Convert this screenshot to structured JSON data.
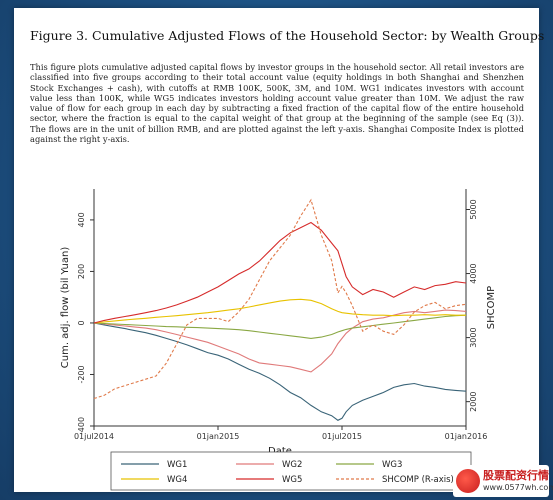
{
  "figure": {
    "title": "Figure 3. Cumulative Adjusted Flows of the Household Sector: by Wealth Groups",
    "caption": "This figure plots cumulative adjusted capital flows by investor groups in the household sector. All retail investors are classified into five groups according to their total account value (equity holdings in both Shanghai and Shenzhen Stock Exchanges + cash), with cutoffs at RMB 100K, 500K, 3M, and 10M. WG1 indicates investors with account value less than 100K, while WG5 indicates investors holding account value greater than 10M. We adjust the raw value of flow for each group in each day by subtracting a fixed fraction of the capital flow of the entire household sector, where the fraction is equal to the capital weight of that group at the beginning of the sample (see Eq (3)). The flows are in the unit of billion RMB, and are plotted against the left y-axis. Shanghai Composite Index is plotted against the right y-axis."
  },
  "watermark": {
    "line1": "股票配资行情",
    "line2": "www.0577wh.com"
  },
  "chart_data": {
    "type": "line",
    "xlabel": "Date",
    "ylabel": "Cum. adj. flow (bil Yuan)",
    "y2label": "SHCOMP",
    "x_ticks": [
      "01jul2014",
      "01jan2015",
      "01jul2015",
      "01jan2016"
    ],
    "x_tick_months": [
      0,
      6,
      12,
      18
    ],
    "ylim": [
      -400,
      520
    ],
    "y_ticks": [
      -400,
      -200,
      0,
      200,
      400
    ],
    "y2lim": [
      1620,
      5320
    ],
    "y2_ticks": [
      2000,
      3000,
      4000,
      5000
    ],
    "grid": false,
    "legend_position": "bottom",
    "x": [
      0,
      0.5,
      1,
      1.5,
      2,
      2.5,
      3,
      3.5,
      4,
      4.5,
      5,
      5.5,
      6,
      6.5,
      7,
      7.5,
      8,
      8.5,
      9,
      9.5,
      10,
      10.5,
      11,
      11.5,
      11.8,
      12,
      12.2,
      12.5,
      13,
      13.5,
      14,
      14.5,
      15,
      15.5,
      16,
      16.5,
      17,
      17.5,
      18
    ],
    "series": [
      {
        "name": "WG1",
        "color": "#3a6478",
        "dash": "solid",
        "axis": "left",
        "values": [
          0,
          -8,
          -15,
          -22,
          -30,
          -38,
          -48,
          -60,
          -72,
          -85,
          -100,
          -115,
          -125,
          -140,
          -160,
          -180,
          -195,
          -215,
          -240,
          -270,
          -290,
          -320,
          -345,
          -360,
          -378,
          -370,
          -345,
          -320,
          -300,
          -285,
          -270,
          -250,
          -240,
          -235,
          -245,
          -250,
          -258,
          -262,
          -265
        ]
      },
      {
        "name": "WG2",
        "color": "#e07a7a",
        "dash": "solid",
        "axis": "left",
        "values": [
          0,
          -4,
          -8,
          -12,
          -16,
          -20,
          -26,
          -35,
          -45,
          -55,
          -65,
          -75,
          -90,
          -105,
          -120,
          -140,
          -155,
          -160,
          -165,
          -170,
          -180,
          -190,
          -160,
          -120,
          -80,
          -60,
          -40,
          -20,
          5,
          15,
          20,
          30,
          40,
          45,
          40,
          45,
          50,
          48,
          45
        ]
      },
      {
        "name": "WG3",
        "color": "#8aa844",
        "dash": "solid",
        "axis": "left",
        "values": [
          0,
          -2,
          -4,
          -6,
          -8,
          -10,
          -12,
          -14,
          -15,
          -17,
          -18,
          -20,
          -22,
          -24,
          -26,
          -30,
          -35,
          -40,
          -45,
          -50,
          -55,
          -60,
          -55,
          -45,
          -35,
          -30,
          -25,
          -20,
          -15,
          -10,
          -5,
          0,
          5,
          10,
          15,
          20,
          25,
          28,
          30
        ]
      },
      {
        "name": "WG4",
        "color": "#e8c200",
        "dash": "solid",
        "axis": "left",
        "values": [
          0,
          4,
          8,
          12,
          15,
          18,
          22,
          25,
          28,
          32,
          36,
          40,
          45,
          50,
          55,
          62,
          70,
          78,
          85,
          90,
          92,
          88,
          75,
          55,
          45,
          40,
          38,
          35,
          32,
          30,
          30,
          28,
          30,
          30,
          32,
          30,
          32,
          30,
          30
        ]
      },
      {
        "name": "WG5",
        "color": "#d62b2b",
        "dash": "solid",
        "axis": "left",
        "values": [
          0,
          10,
          18,
          25,
          32,
          40,
          48,
          58,
          70,
          85,
          100,
          120,
          140,
          165,
          190,
          210,
          240,
          280,
          320,
          350,
          370,
          390,
          360,
          310,
          280,
          230,
          180,
          140,
          110,
          130,
          120,
          100,
          120,
          140,
          130,
          145,
          150,
          160,
          155
        ]
      },
      {
        "name": "SHCOMP (R-axis)",
        "color": "#e07a4a",
        "dash": "3,2",
        "axis": "right",
        "values": [
          2050,
          2100,
          2200,
          2250,
          2300,
          2350,
          2400,
          2600,
          2900,
          3200,
          3300,
          3300,
          3300,
          3250,
          3400,
          3600,
          3900,
          4200,
          4400,
          4600,
          4900,
          5150,
          4600,
          4200,
          3700,
          3800,
          3700,
          3500,
          3100,
          3200,
          3100,
          3050,
          3200,
          3400,
          3500,
          3550,
          3450,
          3500,
          3520
        ]
      }
    ]
  }
}
